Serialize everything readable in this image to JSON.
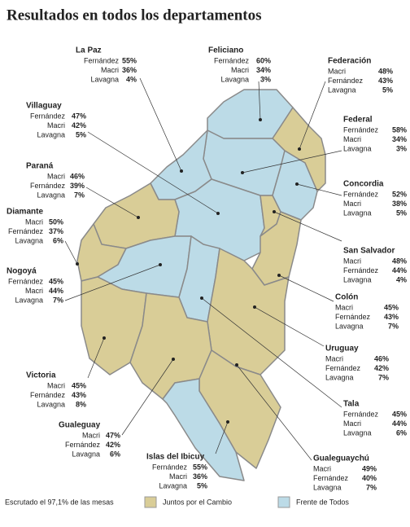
{
  "title": "Resultados en todos los departamentos",
  "departments": [
    {
      "name": "La Paz",
      "results": [
        [
          "Fernández",
          "55%"
        ],
        [
          "Macri",
          "36%"
        ],
        [
          "Lavagna",
          "4%"
        ]
      ]
    },
    {
      "name": "Feliciano",
      "results": [
        [
          "Fernández",
          "60%"
        ],
        [
          "Macri",
          "34%"
        ],
        [
          "Lavagna",
          "3%"
        ]
      ]
    },
    {
      "name": "Federación",
      "results": [
        [
          "Macri",
          "48%"
        ],
        [
          "Fernández",
          "43%"
        ],
        [
          "Lavagna",
          "5%"
        ]
      ]
    },
    {
      "name": "Villaguay",
      "results": [
        [
          "Fernández",
          "47%"
        ],
        [
          "Macri",
          "42%"
        ],
        [
          "Lavagna",
          "5%"
        ]
      ]
    },
    {
      "name": "Federal",
      "results": [
        [
          "Fernández",
          "58%"
        ],
        [
          "Macri",
          "34%"
        ],
        [
          "Lavagna",
          "3%"
        ]
      ]
    },
    {
      "name": "Paraná",
      "results": [
        [
          "Macri",
          "46%"
        ],
        [
          "Fernández",
          "39%"
        ],
        [
          "Lavagna",
          "7%"
        ]
      ]
    },
    {
      "name": "Concordia",
      "results": [
        [
          "Fernández",
          "52%"
        ],
        [
          "Macri",
          "38%"
        ],
        [
          "Lavagna",
          "5%"
        ]
      ]
    },
    {
      "name": "Diamante",
      "results": [
        [
          "Macri",
          "50%"
        ],
        [
          "Fernández",
          "37%"
        ],
        [
          "Lavagna",
          "6%"
        ]
      ]
    },
    {
      "name": "San Salvador",
      "results": [
        [
          "Macri",
          "48%"
        ],
        [
          "Fernández",
          "44%"
        ],
        [
          "Lavagna",
          "4%"
        ]
      ]
    },
    {
      "name": "Nogoyá",
      "results": [
        [
          "Fernández",
          "45%"
        ],
        [
          "Macri",
          "44%"
        ],
        [
          "Lavagna",
          "7%"
        ]
      ]
    },
    {
      "name": "Colón",
      "results": [
        [
          "Macri",
          "45%"
        ],
        [
          "Fernández",
          "43%"
        ],
        [
          "Lavagna",
          "7%"
        ]
      ]
    },
    {
      "name": "Uruguay",
      "results": [
        [
          "Macri",
          "46%"
        ],
        [
          "Fernández",
          "42%"
        ],
        [
          "Lavagna",
          "7%"
        ]
      ]
    },
    {
      "name": "Victoria",
      "results": [
        [
          "Macri",
          "45%"
        ],
        [
          "Fernández",
          "43%"
        ],
        [
          "Lavagna",
          "8%"
        ]
      ]
    },
    {
      "name": "Tala",
      "results": [
        [
          "Fernández",
          "45%"
        ],
        [
          "Macri",
          "44%"
        ],
        [
          "Lavagna",
          "6%"
        ]
      ]
    },
    {
      "name": "Gualeguay",
      "results": [
        [
          "Macri",
          "47%"
        ],
        [
          "Fernández",
          "42%"
        ],
        [
          "Lavagna",
          "6%"
        ]
      ]
    },
    {
      "name": "Islas del Ibicuy",
      "results": [
        [
          "Fernández",
          "55%"
        ],
        [
          "Macri",
          "36%"
        ],
        [
          "Lavagna",
          "5%"
        ]
      ]
    },
    {
      "name": "Gualeguaychú",
      "results": [
        [
          "Macri",
          "49%"
        ],
        [
          "Fernández",
          "40%"
        ],
        [
          "Lavagna",
          "7%"
        ]
      ]
    }
  ],
  "footnote": "Escrutado el 97,1% de las mesas",
  "legend": [
    {
      "name": "Juntos por el Cambio",
      "color": "#d9cd97"
    },
    {
      "name": "Frente de Todos",
      "color": "#bcdbe7"
    }
  ]
}
